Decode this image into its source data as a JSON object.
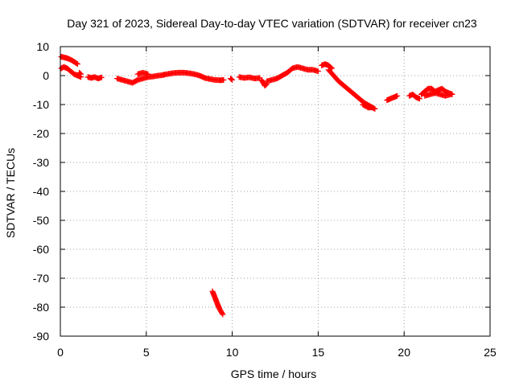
{
  "chart_data": {
    "type": "scatter",
    "title": "Day 321 of 2023, Sidereal Day-to-day VTEC variation (SDTVAR) for receiver cn23",
    "xlabel": "GPS time / hours",
    "ylabel": "SDTVAR / TECUs",
    "xlim": [
      0,
      25
    ],
    "ylim": [
      -90,
      10
    ],
    "xticks": [
      "0",
      "5",
      "10",
      "15",
      "20",
      "25"
    ],
    "yticks": [
      "10",
      "0",
      "-10",
      "-20",
      "-30",
      "-40",
      "-50",
      "-60",
      "-70",
      "-80",
      "-90"
    ],
    "grid": true,
    "marker": "+",
    "color": "#ff0000",
    "segments": [
      {
        "x": [
          0.05,
          0.2,
          0.4,
          0.6,
          0.8,
          1.0
        ],
        "y": [
          6.5,
          6.3,
          6.0,
          5.5,
          4.8,
          4.0
        ]
      },
      {
        "x": [
          0.05,
          0.2,
          0.4,
          0.6,
          0.8,
          1.0,
          1.2
        ],
        "y": [
          2.5,
          3.0,
          2.5,
          1.5,
          0.5,
          0.0,
          -0.5
        ]
      },
      {
        "x": [
          1.1,
          1.2
        ],
        "y": [
          1.0,
          0.5
        ]
      },
      {
        "x": [
          1.6,
          1.8,
          2.0,
          2.2,
          2.4
        ],
        "y": [
          -0.5,
          -0.8,
          -0.5,
          -1.0,
          -0.6
        ]
      },
      {
        "x": [
          3.3,
          3.6,
          3.9,
          4.2,
          4.5,
          4.8,
          5.1,
          5.4,
          5.7,
          6.0
        ],
        "y": [
          -1.0,
          -1.5,
          -2.0,
          -2.5,
          -1.5,
          -1.0,
          -0.5,
          -0.3,
          0.0,
          0.2
        ]
      },
      {
        "x": [
          4.5,
          4.8,
          5.1
        ],
        "y": [
          0.5,
          1.0,
          0.5
        ]
      },
      {
        "x": [
          6.0,
          6.3,
          6.6,
          6.9,
          7.2,
          7.5,
          7.8,
          8.1,
          8.4,
          8.7,
          9.0,
          9.3,
          9.5
        ],
        "y": [
          0.3,
          0.6,
          0.9,
          1.0,
          1.0,
          0.8,
          0.5,
          0.0,
          -0.8,
          -1.2,
          -1.5,
          -1.6,
          -1.5
        ]
      },
      {
        "x": [
          9.9,
          10.0
        ],
        "y": [
          -1.0,
          -1.5
        ]
      },
      {
        "x": [
          10.4,
          10.7,
          11.0,
          11.3,
          11.6
        ],
        "y": [
          -0.5,
          -0.8,
          -0.6,
          -1.0,
          -0.8
        ]
      },
      {
        "x": [
          11.7,
          11.8,
          11.9,
          12.0
        ],
        "y": [
          -1.5,
          -2.5,
          -3.5,
          -3.0
        ]
      },
      {
        "x": [
          12.0,
          12.3,
          12.6,
          12.9,
          13.2,
          13.5,
          13.8,
          14.1,
          14.4,
          14.7,
          15.0
        ],
        "y": [
          -2.0,
          -1.5,
          -1.0,
          0.0,
          1.0,
          2.5,
          3.0,
          2.5,
          2.0,
          2.0,
          1.5
        ]
      },
      {
        "x": [
          15.2,
          15.4,
          15.6,
          15.8
        ],
        "y": [
          3.5,
          4.0,
          3.5,
          2.5
        ]
      },
      {
        "x": [
          15.6,
          15.9,
          16.2,
          16.5,
          16.8,
          17.1,
          17.4,
          17.7,
          18.0,
          18.3
        ],
        "y": [
          2.0,
          0.0,
          -2.0,
          -3.5,
          -5.0,
          -6.5,
          -8.0,
          -9.5,
          -10.5,
          -11.5
        ]
      },
      {
        "x": [
          17.6,
          17.9,
          18.1
        ],
        "y": [
          -10.0,
          -11.0,
          -11.0
        ]
      },
      {
        "x": [
          8.85,
          8.95,
          9.05,
          9.15,
          9.25,
          9.35,
          9.45
        ],
        "y": [
          -74.5,
          -76.0,
          -77.5,
          -79.0,
          -80.5,
          -81.5,
          -82.5
        ]
      },
      {
        "x": [
          19.0,
          19.2,
          19.4,
          19.6
        ],
        "y": [
          -8.5,
          -8.0,
          -7.5,
          -7.0
        ]
      },
      {
        "x": [
          20.3,
          20.5,
          20.7,
          20.9
        ],
        "y": [
          -7.0,
          -6.5,
          -7.5,
          -8.0
        ]
      },
      {
        "x": [
          21.0,
          21.2,
          21.4,
          21.6,
          21.8,
          22.0,
          22.2,
          22.4,
          22.6,
          22.8
        ],
        "y": [
          -6.5,
          -5.5,
          -4.5,
          -4.5,
          -5.5,
          -5.0,
          -4.5,
          -5.5,
          -6.0,
          -6.5
        ]
      },
      {
        "x": [
          21.2,
          21.5,
          21.8,
          22.1,
          22.4,
          22.7
        ],
        "y": [
          -7.0,
          -6.5,
          -6.0,
          -6.5,
          -7.0,
          -6.5
        ]
      }
    ]
  }
}
